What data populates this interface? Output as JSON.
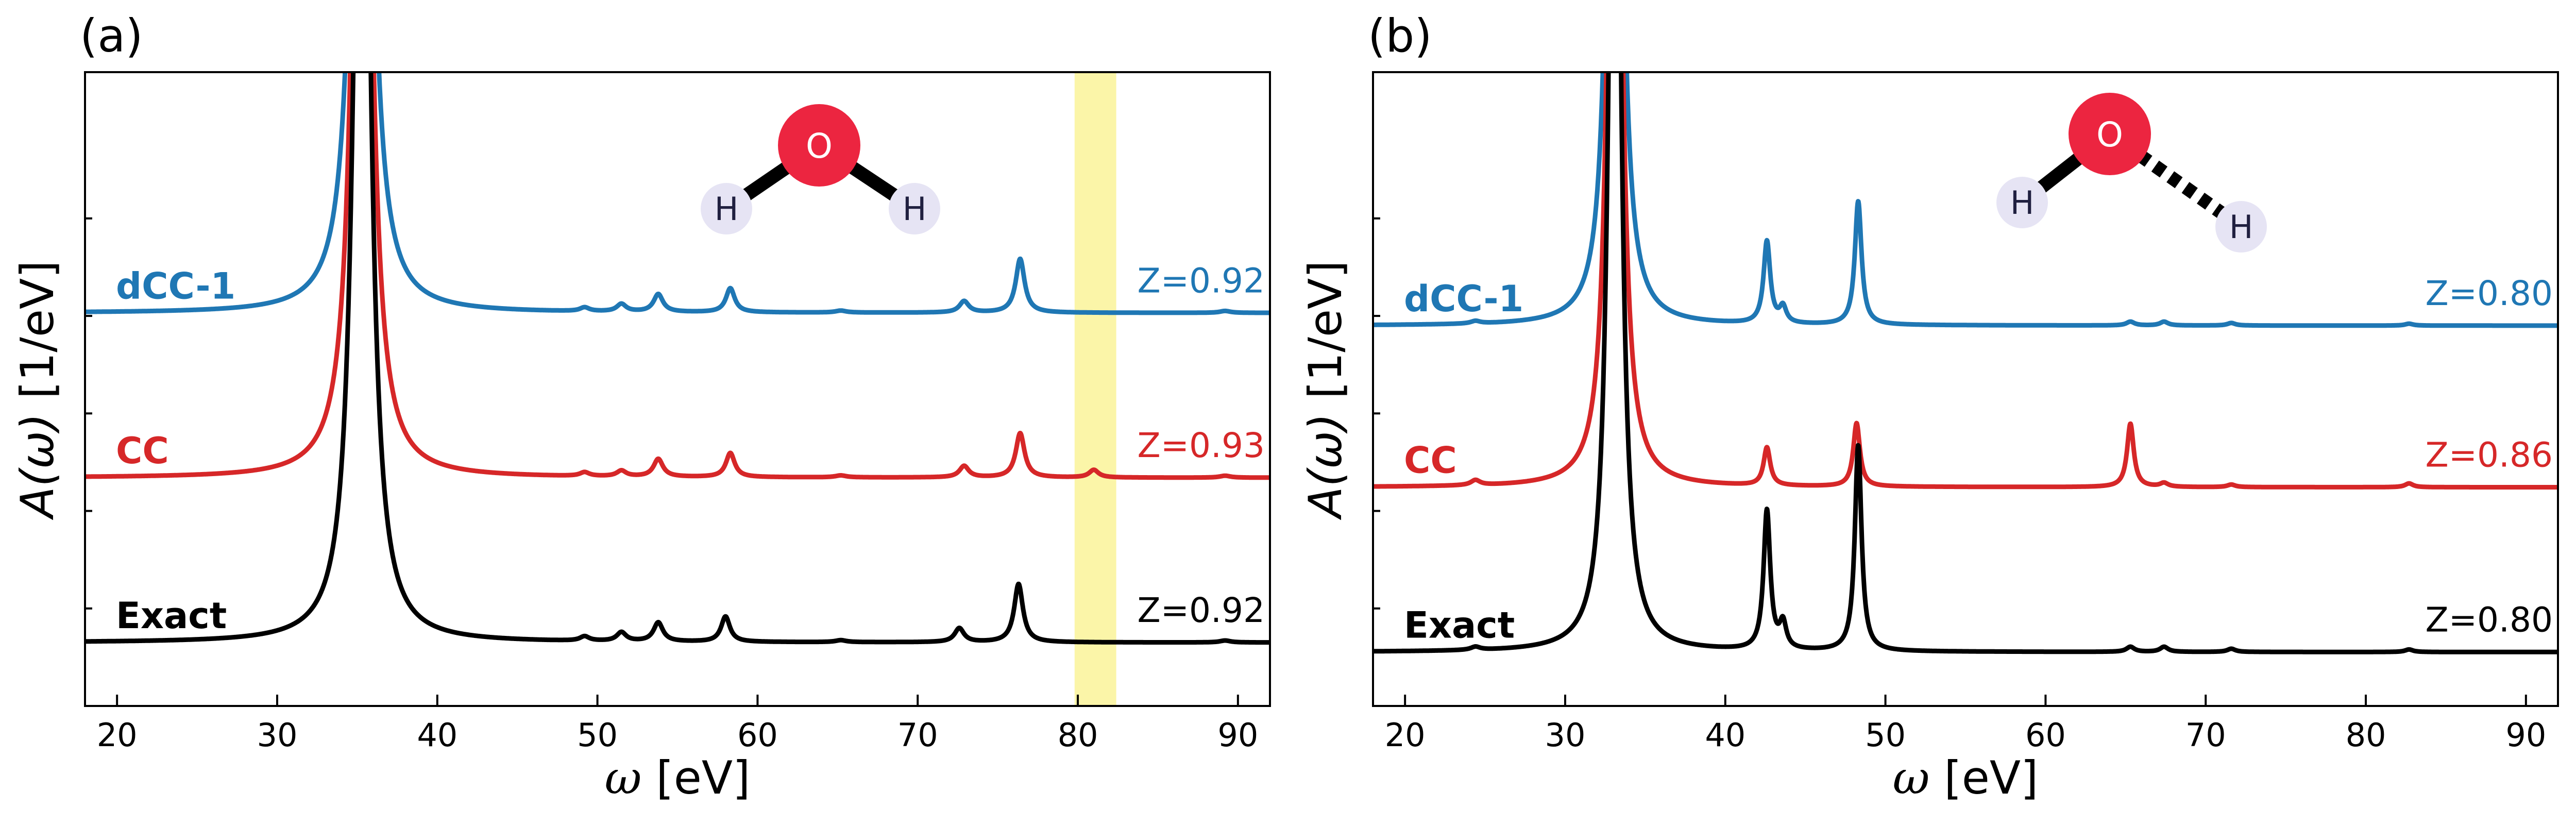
{
  "figure": {
    "description_hidden": false
  },
  "chart_data": [
    {
      "type": "line",
      "panel_label": "(a)",
      "xlabel_symbol": "ω",
      "xlabel_unit": "[eV]",
      "ylabel_symbol": "A(ω)",
      "ylabel_unit": "[1/eV]",
      "xlim": [
        18,
        92
      ],
      "xticks": [
        20,
        30,
        40,
        50,
        60,
        70,
        80,
        90
      ],
      "highlight_band": {
        "x": [
          79.8,
          82.4
        ],
        "color": "#fbf5a8"
      },
      "molecule": {
        "center": "O",
        "left": "H",
        "right": "H",
        "right_bond": "solid"
      },
      "main_peak": {
        "center": 35.3,
        "width": 0.55
      },
      "series": [
        {
          "name": "dCC-1",
          "color": "#1f77b4",
          "z_label": "Z=0.92",
          "baseline": 0.62,
          "peaks": [
            [
              49.2,
              0.006,
              0.35
            ],
            [
              51.5,
              0.012,
              0.35
            ],
            [
              53.8,
              0.028,
              0.35
            ],
            [
              58.3,
              0.038,
              0.33
            ],
            [
              65.2,
              0.003,
              0.4
            ],
            [
              72.9,
              0.018,
              0.35
            ],
            [
              76.4,
              0.085,
              0.33
            ],
            [
              89.2,
              0.003,
              0.4
            ]
          ]
        },
        {
          "name": "CC",
          "color": "#d62728",
          "z_label": "Z=0.93",
          "baseline": 0.36,
          "peaks": [
            [
              49.2,
              0.006,
              0.35
            ],
            [
              51.5,
              0.009,
              0.35
            ],
            [
              53.8,
              0.028,
              0.35
            ],
            [
              58.3,
              0.038,
              0.33
            ],
            [
              65.2,
              0.003,
              0.4
            ],
            [
              72.9,
              0.018,
              0.35
            ],
            [
              76.4,
              0.07,
              0.33
            ],
            [
              81.0,
              0.012,
              0.35
            ],
            [
              89.2,
              0.003,
              0.4
            ]
          ]
        },
        {
          "name": "Exact",
          "color": "#000000",
          "z_label": "Z=0.92",
          "baseline": 0.1,
          "peaks": [
            [
              49.2,
              0.007,
              0.35
            ],
            [
              51.5,
              0.014,
              0.35
            ],
            [
              53.8,
              0.03,
              0.35
            ],
            [
              58.0,
              0.04,
              0.33
            ],
            [
              65.2,
              0.003,
              0.4
            ],
            [
              72.6,
              0.022,
              0.35
            ],
            [
              76.3,
              0.092,
              0.33
            ],
            [
              89.2,
              0.003,
              0.4
            ]
          ]
        }
      ]
    },
    {
      "type": "line",
      "panel_label": "(b)",
      "xlabel_symbol": "ω",
      "xlabel_unit": "[eV]",
      "ylabel_symbol": "A(ω)",
      "ylabel_unit": "[1/eV]",
      "xlim": [
        18,
        92
      ],
      "xticks": [
        20,
        30,
        40,
        50,
        60,
        70,
        80,
        90
      ],
      "molecule": {
        "center": "O",
        "left": "H",
        "right": "H",
        "right_bond": "dotted"
      },
      "main_peak": {
        "center": 33.1,
        "width": 0.4
      },
      "series": [
        {
          "name": "dCC-1",
          "color": "#1f77b4",
          "z_label": "Z=0.80",
          "baseline": 0.6,
          "peaks": [
            [
              24.4,
              0.004,
              0.35
            ],
            [
              42.6,
              0.13,
              0.25
            ],
            [
              43.6,
              0.025,
              0.25
            ],
            [
              48.3,
              0.195,
              0.25
            ],
            [
              65.3,
              0.006,
              0.3
            ],
            [
              67.4,
              0.006,
              0.3
            ],
            [
              71.6,
              0.004,
              0.3
            ],
            [
              82.7,
              0.003,
              0.3
            ]
          ]
        },
        {
          "name": "CC",
          "color": "#d62728",
          "z_label": "Z=0.86",
          "baseline": 0.345,
          "peaks": [
            [
              24.4,
              0.008,
              0.35
            ],
            [
              42.6,
              0.06,
              0.25
            ],
            [
              48.2,
              0.1,
              0.25
            ],
            [
              65.3,
              0.1,
              0.25
            ],
            [
              67.4,
              0.006,
              0.3
            ],
            [
              71.6,
              0.004,
              0.3
            ],
            [
              82.7,
              0.006,
              0.3
            ]
          ]
        },
        {
          "name": "Exact",
          "color": "#000000",
          "z_label": "Z=0.80",
          "baseline": 0.085,
          "peaks": [
            [
              24.4,
              0.005,
              0.35
            ],
            [
              42.6,
              0.22,
              0.25
            ],
            [
              43.6,
              0.04,
              0.25
            ],
            [
              48.3,
              0.325,
              0.25
            ],
            [
              65.3,
              0.008,
              0.3
            ],
            [
              67.4,
              0.008,
              0.3
            ],
            [
              71.6,
              0.005,
              0.3
            ],
            [
              82.7,
              0.004,
              0.3
            ]
          ]
        }
      ]
    }
  ]
}
